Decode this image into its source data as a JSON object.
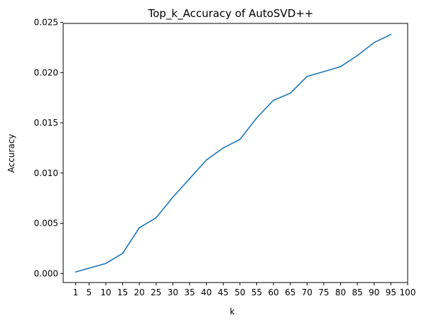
{
  "chart_data": {
    "type": "line",
    "title": "Top_k_Accuracy of AutoSVD++",
    "xlabel": "k",
    "ylabel": "Accuracy",
    "x_ticks": [
      1,
      5,
      10,
      15,
      20,
      25,
      30,
      35,
      40,
      45,
      50,
      55,
      60,
      65,
      70,
      75,
      80,
      85,
      90,
      95,
      100
    ],
    "y_ticks": [
      "0.000",
      "0.005",
      "0.010",
      "0.015",
      "0.020",
      "0.025"
    ],
    "xlim": [
      -2.7,
      100
    ],
    "ylim": [
      -0.0009,
      0.0249
    ],
    "grid": false,
    "line_color": "#1f77b4",
    "series": [
      {
        "x": [
          1,
          5,
          10,
          15,
          20,
          25,
          30,
          35,
          40,
          45,
          50,
          55,
          60,
          65,
          70,
          75,
          80,
          85,
          90,
          95
        ],
        "values": [
          0.00015,
          0.00053,
          0.001,
          0.002,
          0.00455,
          0.00555,
          0.0076,
          0.00945,
          0.0113,
          0.0125,
          0.01335,
          0.0155,
          0.01725,
          0.01795,
          0.01962,
          0.0201,
          0.0206,
          0.0217,
          0.023,
          0.0238
        ]
      }
    ]
  }
}
